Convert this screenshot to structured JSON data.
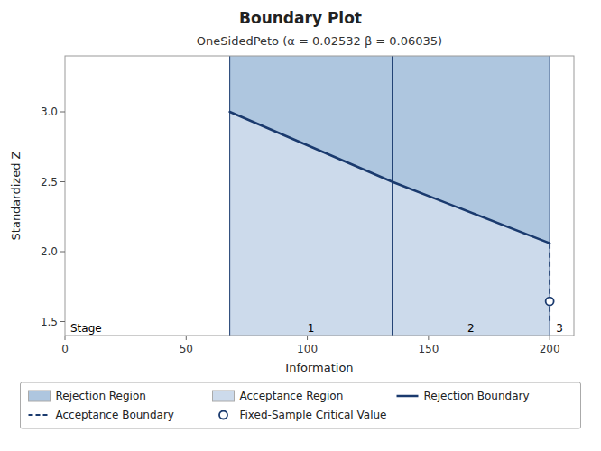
{
  "chart_data": {
    "type": "boundary",
    "title": "Boundary Plot",
    "subtitle": "OneSidedPeto (α = 0.02532  β = 0.06035)",
    "xlabel": "Information",
    "ylabel": "Standardized Z",
    "xlim": [
      0,
      210
    ],
    "ylim": [
      1.4,
      3.4
    ],
    "xticks": [
      0,
      50,
      100,
      150,
      200
    ],
    "yticks": [
      1.5,
      {
        "value": 2.0,
        "label": "2.0"
      },
      2.5,
      {
        "value": 3.0,
        "label": "3.0"
      }
    ],
    "grid": false,
    "legend": "bottom",
    "stage_lines": [
      68,
      135,
      200
    ],
    "annotations": [
      "Stage",
      "1",
      "2",
      "3"
    ],
    "series": [
      {
        "name": "Rejection Region",
        "type": "area",
        "color": "#aec6df"
      },
      {
        "name": "Acceptance Region",
        "type": "area",
        "color": "#ccdaeb"
      },
      {
        "name": "Rejection Boundary",
        "type": "line",
        "color": "#1a3a6e",
        "line_style": "solid",
        "x": [
          68,
          135,
          200
        ],
        "values": [
          3.0,
          2.5,
          2.06
        ]
      },
      {
        "name": "Acceptance Boundary",
        "type": "line",
        "color": "#1a3a6e",
        "line_style": "dashed",
        "x": [
          200,
          200
        ],
        "values": [
          2.06,
          1.48
        ]
      },
      {
        "name": "Fixed-Sample Critical Value",
        "type": "scatter",
        "color": "#1a3a6e",
        "marker": "circle",
        "x": [
          200
        ],
        "values": [
          1.645
        ]
      }
    ]
  }
}
